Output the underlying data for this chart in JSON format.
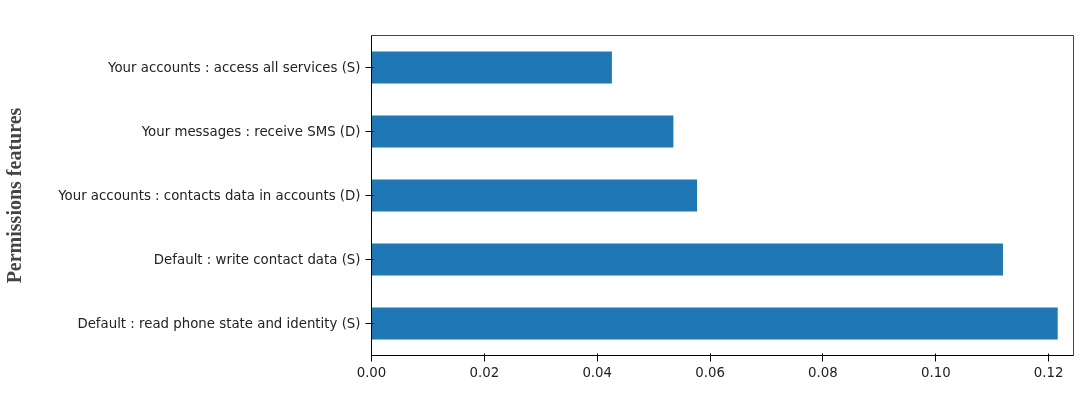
{
  "chart_data": {
    "type": "bar",
    "orientation": "horizontal",
    "ylabel": "Permissions features",
    "categories": [
      "Your accounts : access all services (S)",
      "Your messages : receive SMS (D)",
      "Your accounts : contacts data in accounts (D)",
      "Default : write contact data (S)",
      "Default : read phone state and identity (S)"
    ],
    "values": [
      0.0426,
      0.0535,
      0.0577,
      0.1119,
      0.1216
    ],
    "color": "#1f77b4",
    "xlim": [
      0,
      0.1244
    ],
    "xticks": [
      {
        "value": 0,
        "label": "0.00"
      },
      {
        "value": 0.02,
        "label": "0.02"
      },
      {
        "value": 0.04,
        "label": "0.04"
      },
      {
        "value": 0.06,
        "label": "0.06"
      },
      {
        "value": 0.08,
        "label": "0.08"
      },
      {
        "value": 0.1,
        "label": "0.10"
      },
      {
        "value": 0.12,
        "label": "0.12"
      }
    ],
    "grid": false
  }
}
